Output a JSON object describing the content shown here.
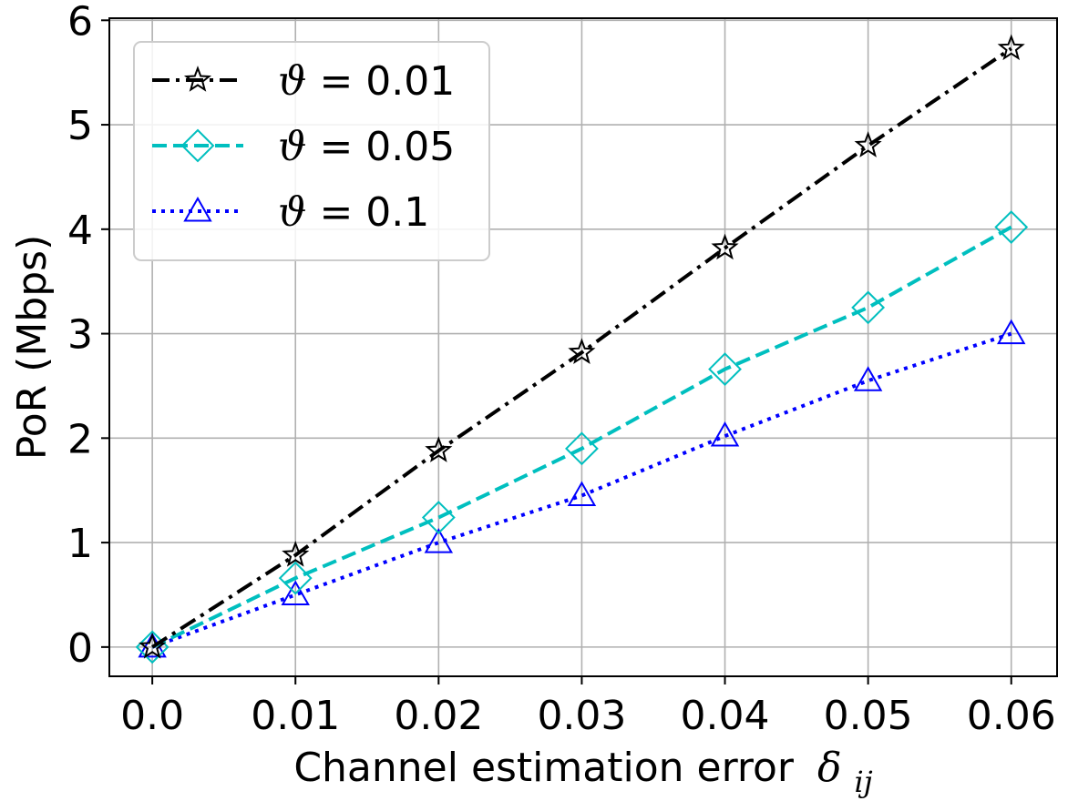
{
  "chart_data": {
    "type": "line",
    "title": "",
    "xlabel": "Channel estimation error",
    "xlabel_symbol": "δ",
    "xlabel_subscript": "ij",
    "ylabel": "PoR (Mbps)",
    "x": [
      0.0,
      0.01,
      0.02,
      0.03,
      0.04,
      0.05,
      0.06
    ],
    "xticks": [
      "0.0",
      "0.01",
      "0.02",
      "0.03",
      "0.04",
      "0.05",
      "0.06"
    ],
    "yticks": [
      "0",
      "1",
      "2",
      "3",
      "4",
      "5",
      "6"
    ],
    "xlim": [
      -0.003,
      0.0632
    ],
    "ylim": [
      -0.28,
      6.02
    ],
    "grid": true,
    "legend_position": "top-left",
    "series": [
      {
        "name": "ϑ = 0.01",
        "legend_symbol": "ϑ",
        "legend_rest": " = 0.01",
        "values": [
          0.0,
          0.88,
          1.88,
          2.82,
          3.82,
          4.8,
          5.73
        ],
        "color": "#000000",
        "linestyle": "dashdot",
        "marker": "star"
      },
      {
        "name": "ϑ = 0.05",
        "legend_symbol": "ϑ",
        "legend_rest": " = 0.05",
        "values": [
          0.0,
          0.66,
          1.24,
          1.9,
          2.66,
          3.25,
          4.02
        ],
        "color": "#00bfbf",
        "linestyle": "dashed",
        "marker": "diamond"
      },
      {
        "name": "ϑ = 0.1",
        "legend_symbol": "ϑ",
        "legend_rest": " = 0.1",
        "values": [
          0.0,
          0.5,
          1.0,
          1.45,
          2.02,
          2.55,
          3.0
        ],
        "color": "#0000ff",
        "linestyle": "dotted",
        "marker": "triangle"
      }
    ]
  }
}
